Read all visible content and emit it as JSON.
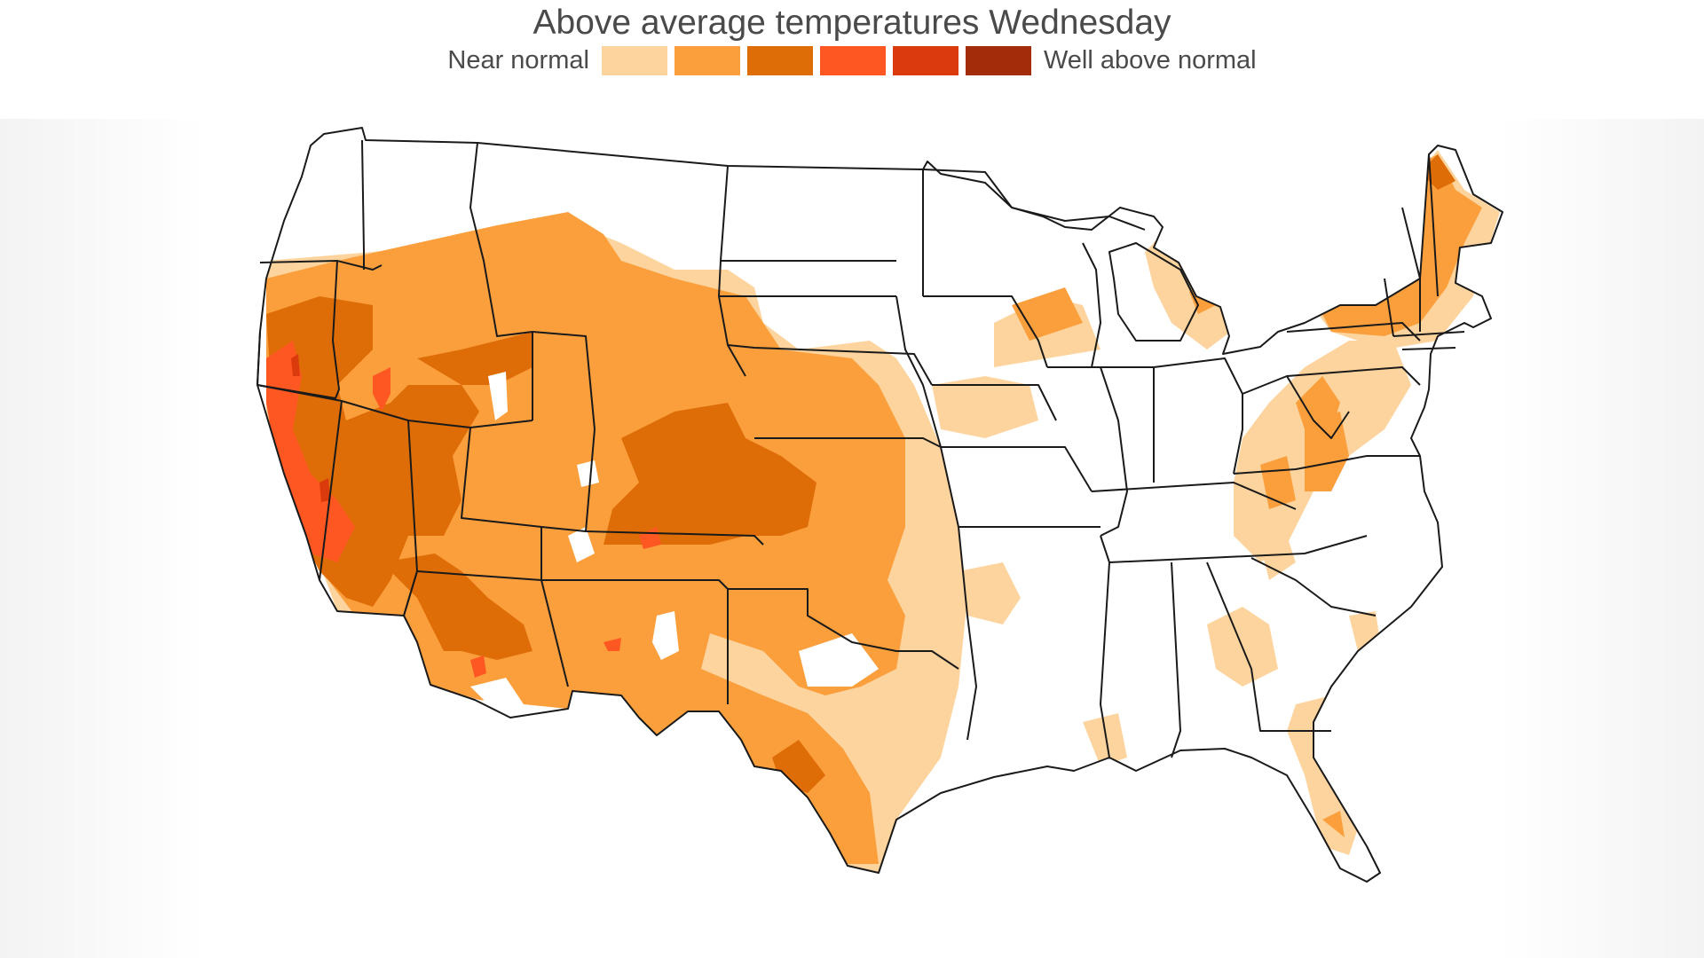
{
  "title": "Above average temperatures Wednesday",
  "legend": {
    "low_label": "Near normal",
    "high_label": "Well above normal",
    "categories": [
      {
        "color": "#fdd49e"
      },
      {
        "color": "#fb9f3c"
      },
      {
        "color": "#de6c07"
      },
      {
        "color": "#fe5722"
      },
      {
        "color": "#db3b0c"
      },
      {
        "color": "#a32c0b"
      }
    ]
  },
  "colors": {
    "state_border": "#1a1a1a",
    "land": "#ffffff",
    "background": "#f3f3f3"
  }
}
